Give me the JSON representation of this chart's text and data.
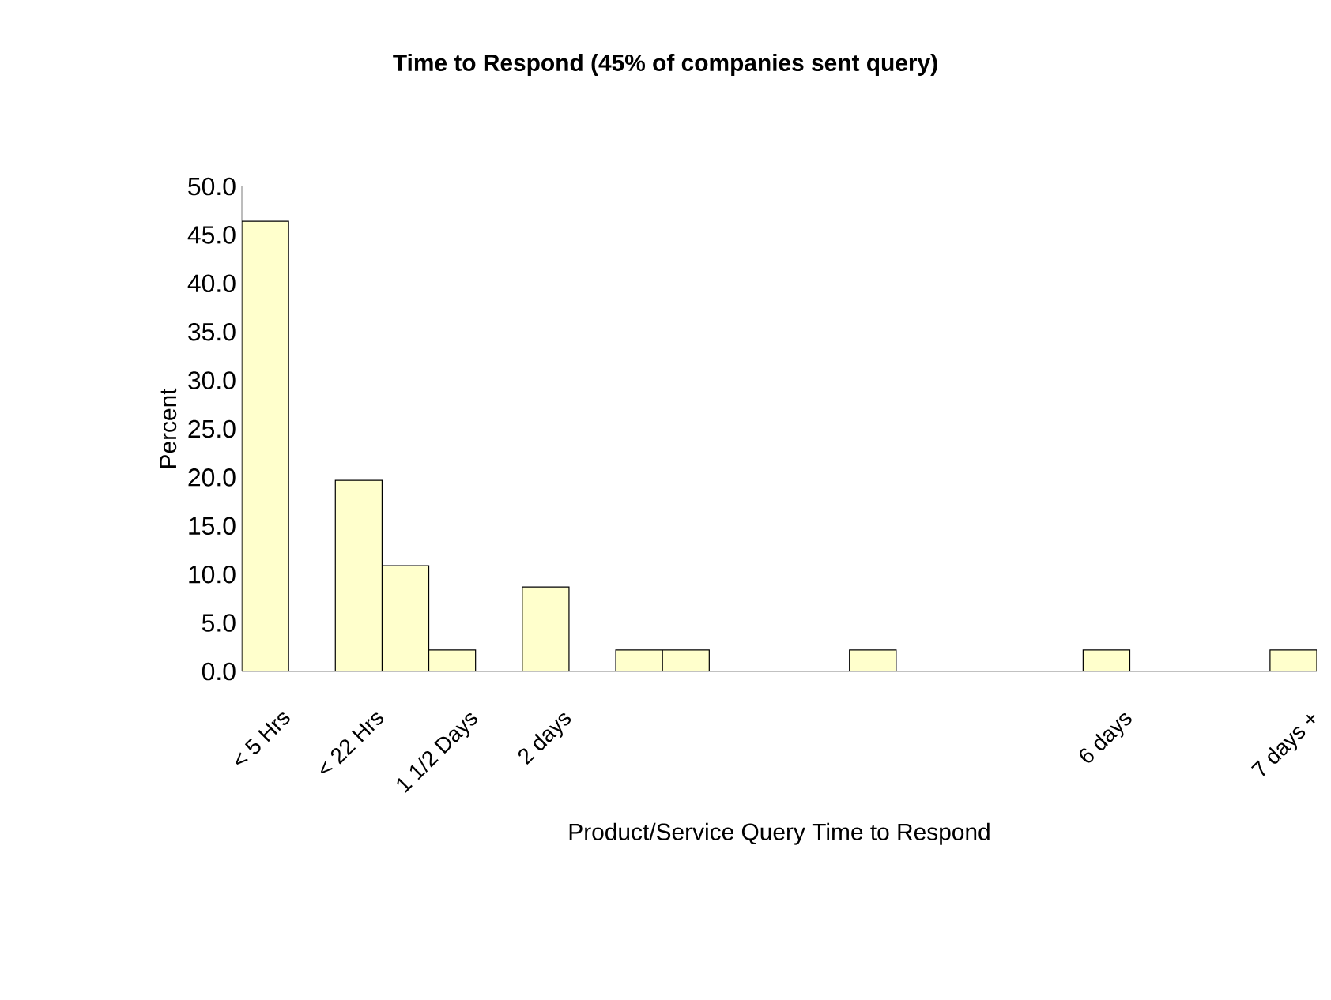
{
  "chart_data": {
    "type": "bar",
    "title": "Time to Respond (45% of companies sent query)",
    "xlabel": "Product/Service Query Time to Respond",
    "ylabel": "Percent",
    "categories": [
      "< 5 Hrs",
      null,
      "< 22 Hrs",
      null,
      "1 1/2 Days",
      null,
      "2 days",
      null,
      null,
      null,
      null,
      null,
      null,
      null,
      null,
      null,
      null,
      null,
      "6 days",
      null,
      null,
      null,
      "7 days +"
    ],
    "values": [
      46.4,
      null,
      19.7,
      10.9,
      2.2,
      null,
      8.7,
      null,
      2.2,
      2.2,
      null,
      null,
      null,
      2.2,
      null,
      null,
      null,
      null,
      2.2,
      null,
      null,
      null,
      2.2
    ],
    "color": "#ffffcc",
    "ylim": [
      0,
      50
    ],
    "yticks": [
      {
        "value": 0,
        "label": "0.0"
      },
      {
        "value": 5,
        "label": "5.0"
      },
      {
        "value": 10,
        "label": "10.0"
      },
      {
        "value": 15,
        "label": "15.0"
      },
      {
        "value": 20,
        "label": "20.0"
      },
      {
        "value": 25,
        "label": "25.0"
      },
      {
        "value": 30,
        "label": "30.0"
      },
      {
        "value": 35,
        "label": "35.0"
      },
      {
        "value": 40,
        "label": "40.0"
      },
      {
        "value": 45,
        "label": "45.0"
      },
      {
        "value": 50,
        "label": "50.0"
      }
    ],
    "grid": false
  }
}
